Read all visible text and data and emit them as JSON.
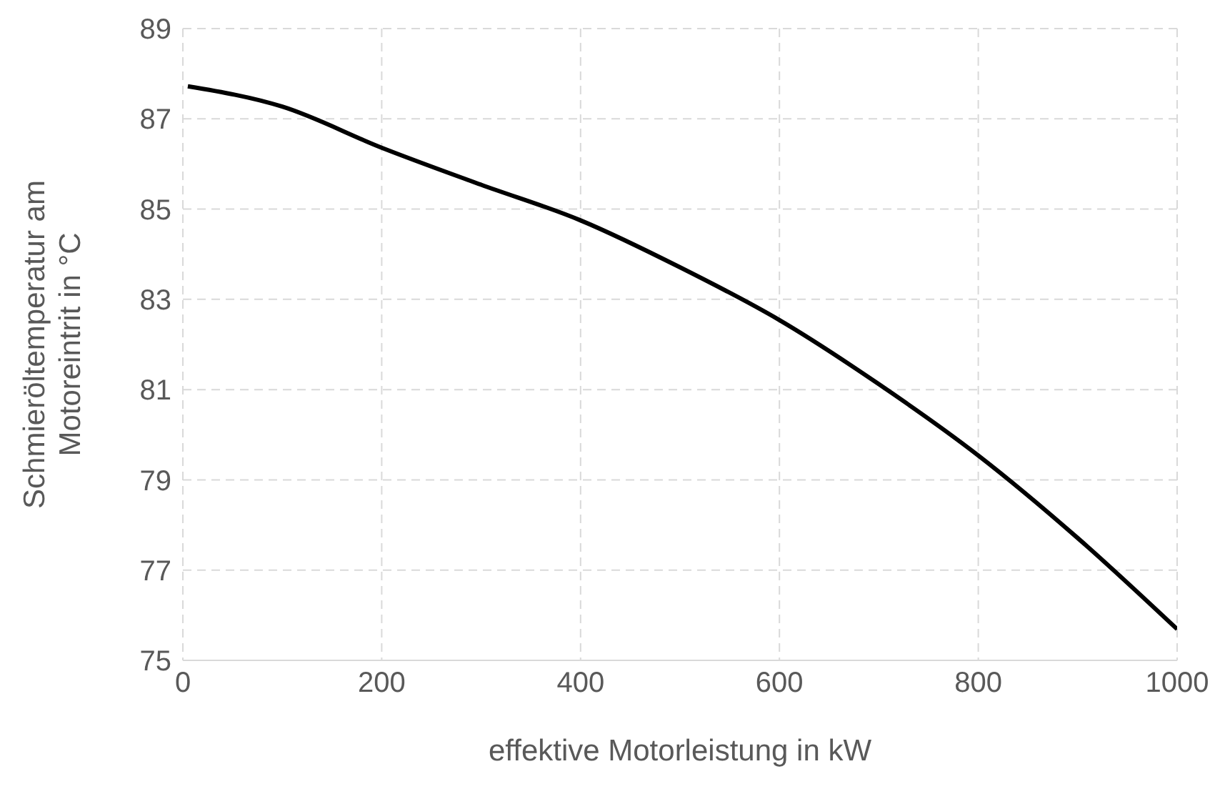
{
  "chart_data": {
    "type": "line",
    "xlabel": "effektive Motorleistung in kW",
    "ylabel": "Schmieröltemperatur am Motoreintrit in °C",
    "x": [
      5,
      100,
      200,
      300,
      400,
      500,
      600,
      700,
      800,
      900,
      1000
    ],
    "series": [
      {
        "color": "#000000",
        "values": [
          87.72,
          87.27,
          86.36,
          85.54,
          84.75,
          83.71,
          82.54,
          81.12,
          79.54,
          77.71,
          75.69
        ]
      }
    ],
    "xlim": [
      0,
      1000
    ],
    "xticks": [
      0,
      200,
      400,
      600,
      800,
      1000
    ],
    "ylim": [
      75,
      89
    ],
    "yticks": [
      75,
      77,
      79,
      81,
      83,
      85,
      87,
      89
    ],
    "grid": true,
    "legend": false,
    "marker": "none",
    "line_style": "solid"
  }
}
